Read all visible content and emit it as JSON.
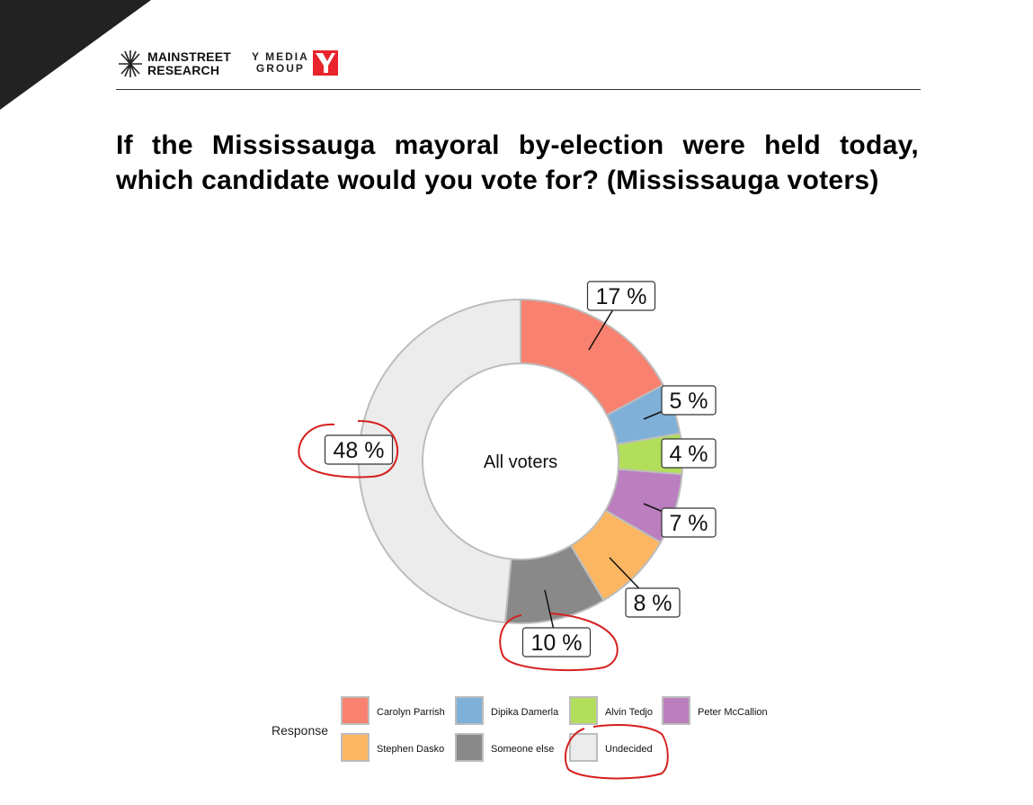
{
  "header": {
    "logo_left": {
      "line1": "MAINSTREET",
      "line2": "RESEARCH"
    },
    "logo_right": {
      "line1": "Y MEDIA",
      "line2": "GROUP"
    }
  },
  "colors": {
    "corner": "#222222",
    "brand_red": "#e8232b",
    "annotation_red": "#d62020"
  },
  "chart_data": {
    "type": "pie",
    "title": "If the Mississauga mayoral by-election were held today, which candidate would you vote for? (Mississauga voters)",
    "center_label": "All voters",
    "legend_title": "Response",
    "legend_position": "bottom",
    "slices": [
      {
        "name": "Carolyn Parrish",
        "value": 17,
        "label": "17 %",
        "color": "#f8816f"
      },
      {
        "name": "Dipika Damerla",
        "value": 5,
        "label": "5 %",
        "color": "#7fb0d8"
      },
      {
        "name": "Alvin Tedjo",
        "value": 4,
        "label": "4 %",
        "color": "#b2de5b"
      },
      {
        "name": "Peter McCallion",
        "value": 7,
        "label": "7 %",
        "color": "#bb7ebf"
      },
      {
        "name": "Stephen Dasko",
        "value": 8,
        "label": "8 %",
        "color": "#fcb661"
      },
      {
        "name": "Someone else",
        "value": 10,
        "label": "10 %",
        "color": "#898989"
      },
      {
        "name": "Undecided",
        "value": 48,
        "label": "48 %",
        "color": "#ececec"
      }
    ],
    "annotations": [
      "48 %",
      "10 %",
      "Undecided"
    ]
  }
}
